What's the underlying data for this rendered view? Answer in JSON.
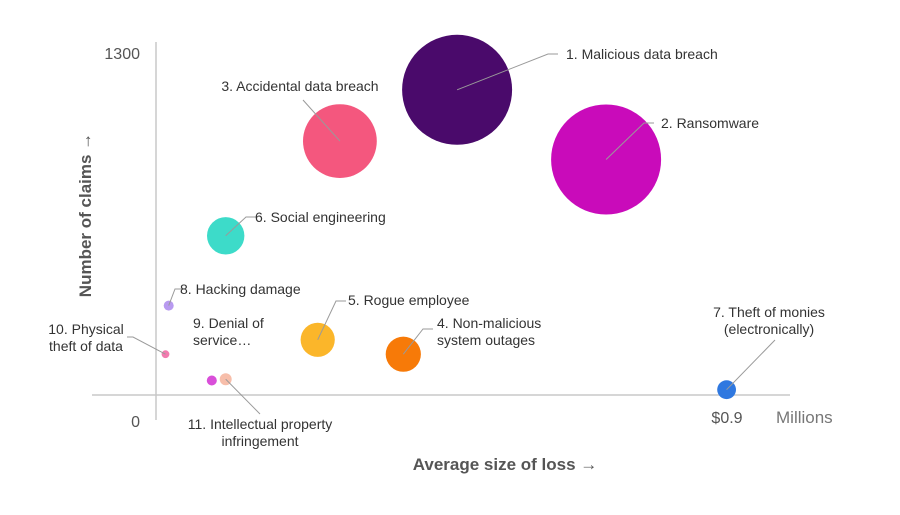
{
  "chart_data": {
    "type": "scatter",
    "subtype": "bubble",
    "title": "",
    "xlabel": "Average size of loss →",
    "ylabel": "Number of claims →",
    "x_unit_label": "Millions",
    "xlim": [
      0,
      1.0
    ],
    "ylim": [
      0,
      1300
    ],
    "x_ticks": [
      {
        "value": 0.9,
        "label": "$0.9"
      }
    ],
    "y_ticks": [
      {
        "value": 0,
        "label": "0"
      },
      {
        "value": 1300,
        "label": "1300"
      }
    ],
    "legend": "none",
    "grid": false,
    "series": [
      {
        "id": "s1",
        "name": "1. Malicious data breach",
        "lines": [
          "1. Malicious data breach"
        ],
        "x": 0.475,
        "y": 1160,
        "size": 1.0,
        "color": "#4A0A6B"
      },
      {
        "id": "s2",
        "name": "2. Ransomware",
        "lines": [
          "2. Ransomware"
        ],
        "x": 0.71,
        "y": 895,
        "size": 1.0,
        "color": "#C90BBA"
      },
      {
        "id": "s3",
        "name": "3. Accidental data breach",
        "lines": [
          "3. Accidental data breach"
        ],
        "x": 0.29,
        "y": 965,
        "size": 0.67,
        "color": "#F4577E"
      },
      {
        "id": "s4",
        "name": "4. Non-malicious system outages",
        "lines": [
          "4. Non-malicious",
          "system outages"
        ],
        "x": 0.39,
        "y": 155,
        "size": 0.32,
        "color": "#F77A08"
      },
      {
        "id": "s5",
        "name": "5. Rogue employee",
        "lines": [
          "5. Rogue employee"
        ],
        "x": 0.255,
        "y": 210,
        "size": 0.31,
        "color": "#FBB62A"
      },
      {
        "id": "s6",
        "name": "6. Social engineering",
        "lines": [
          "6. Social engineering"
        ],
        "x": 0.11,
        "y": 605,
        "size": 0.34,
        "color": "#3DDBC9"
      },
      {
        "id": "s7",
        "name": "7. Theft of monies (electronically)",
        "lines": [
          "7. Theft of monies",
          "(electronically)"
        ],
        "x": 0.9,
        "y": 20,
        "size": 0.17,
        "color": "#2F78E0"
      },
      {
        "id": "s8",
        "name": "8. Hacking damage",
        "lines": [
          "8. Hacking damage"
        ],
        "x": 0.02,
        "y": 340,
        "size": 0.09,
        "color": "#B89AF0"
      },
      {
        "id": "s9",
        "name": "9. Denial of service…",
        "lines": [
          "9. Denial of",
          "service…"
        ],
        "x": 0.088,
        "y": 55,
        "size": 0.09,
        "color": "#D94FD9"
      },
      {
        "id": "s10",
        "name": "10. Physical theft of data",
        "lines": [
          "10. Physical",
          "theft of data"
        ],
        "x": 0.015,
        "y": 155,
        "size": 0.07,
        "color": "#F27BAF"
      },
      {
        "id": "s11",
        "name": "11. Intellectual property infringement",
        "lines": [
          "11. Intellectual  property",
          "infringement"
        ],
        "x": 0.11,
        "y": 60,
        "size": 0.11,
        "color": "#F7BEAA"
      }
    ]
  }
}
